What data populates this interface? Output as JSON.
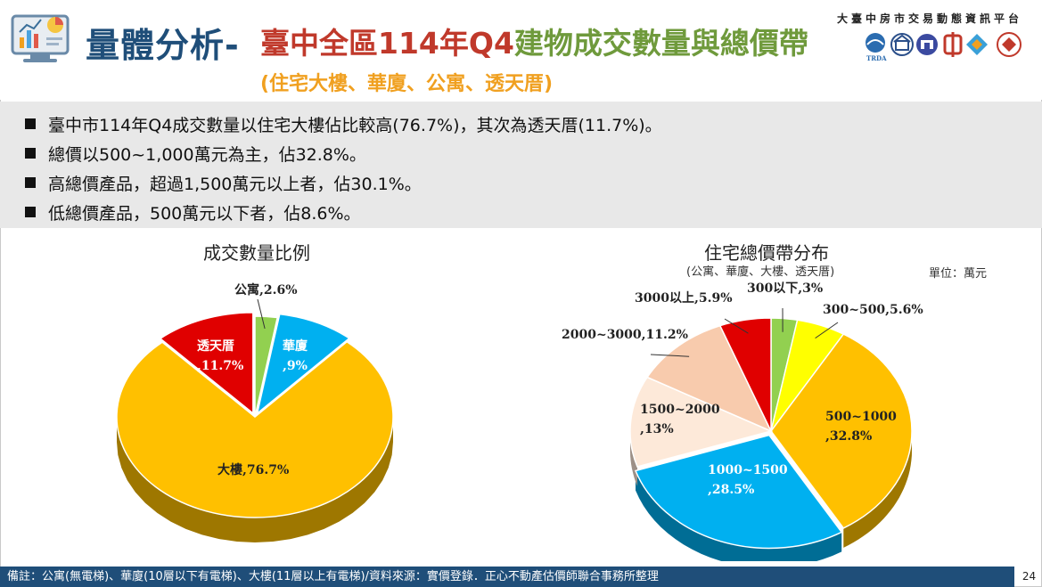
{
  "header": {
    "title_main": "量體分析-",
    "title_sub_a": "臺中全區114年Q4",
    "title_sub_b": "建物成交數量與總價帶",
    "title_paren": "(住宅大樓、華廈、公寓、透天厝)",
    "platform": "大臺中房市交易動態資訊平台",
    "partner_logo_text": "TRDA"
  },
  "bullets": [
    "臺中市114年Q4成交數量以住宅大樓佔比較高(76.7%)，其次為透天厝(11.7%)。",
    "總價以500~1,000萬元為主，佔32.8%。",
    "高總價產品，超過1,500萬元以上者，佔30.1%。",
    "低總價產品，500萬元以下者，佔8.6%。"
  ],
  "chart_data": [
    {
      "type": "pie",
      "title": "成交數量比例",
      "slices": [
        {
          "label": "公寓",
          "value": 2.6,
          "display": "公寓,2.6%",
          "color": "#92d050"
        },
        {
          "label": "華廈",
          "value": 9,
          "display1": "華廈",
          "display2": ",9%",
          "color": "#00b0f0"
        },
        {
          "label": "大樓",
          "value": 76.7,
          "display": "大樓,76.7%",
          "color": "#ffc000"
        },
        {
          "label": "透天厝",
          "value": 11.7,
          "display1": "透天厝",
          "display2": ",11.7%",
          "color": "#e00000"
        }
      ]
    },
    {
      "type": "pie",
      "title": "住宅總價帶分布",
      "subtitle": "(公寓、華廈、大樓、透天厝)",
      "unit": "單位：萬元",
      "slices": [
        {
          "label": "300以下",
          "value": 3,
          "display": "300以下,3%",
          "color": "#92d050"
        },
        {
          "label": "300~500",
          "value": 5.6,
          "display": "300~500,5.6%",
          "color": "#ffff00"
        },
        {
          "label": "500~1000",
          "value": 32.8,
          "display1": "500~1000",
          "display2": ",32.8%",
          "color": "#ffc000"
        },
        {
          "label": "1000~1500",
          "value": 28.5,
          "display1": "1000~1500",
          "display2": ",28.5%",
          "color": "#00b0f0"
        },
        {
          "label": "1500~2000",
          "value": 13,
          "display1": "1500~2000",
          "display2": ",13%",
          "color": "#fde9d9"
        },
        {
          "label": "2000~3000",
          "value": 11.2,
          "display": "2000~3000,11.2%",
          "color": "#f8cbad"
        },
        {
          "label": "3000以上",
          "value": 5.9,
          "display": "3000以上,5.9%",
          "color": "#e00000"
        }
      ]
    }
  ],
  "footer": {
    "note": "備註：公寓(無電梯)、華廈(10層以下有電梯)、大樓(11層以上有電梯)/資料來源：實價登錄．正心不動產估價師聯合事務所整理",
    "page": "24"
  }
}
